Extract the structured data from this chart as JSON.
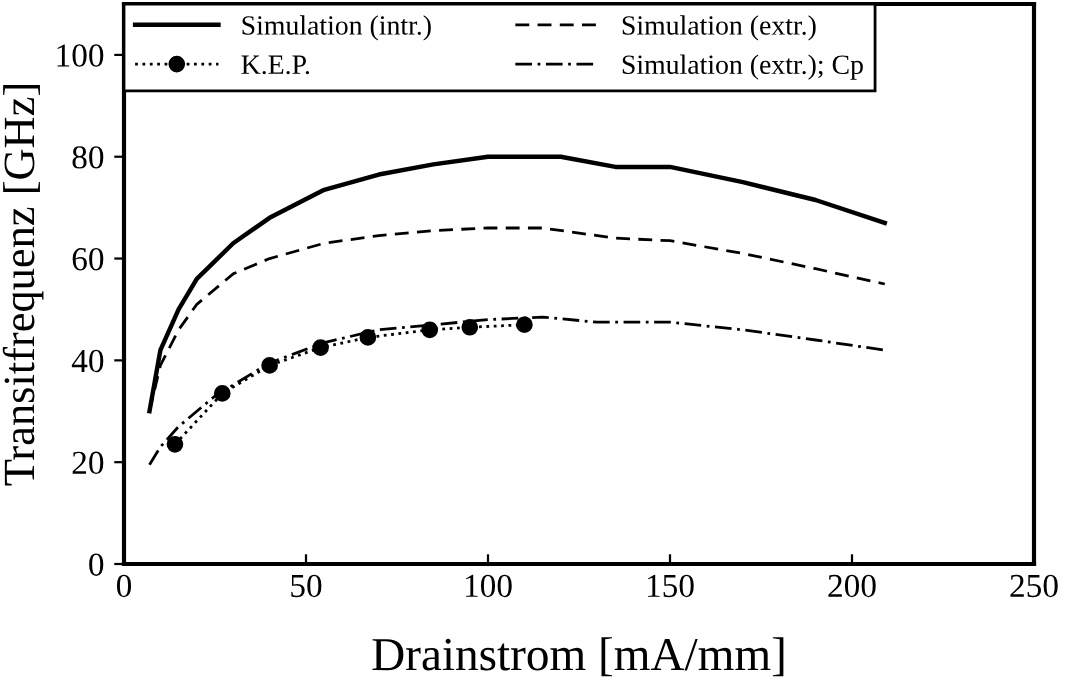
{
  "chart_data": {
    "type": "line",
    "xlabel": "Drainstrom [mA/mm]",
    "ylabel": "Transitfrequenz [GHz]",
    "xlim": [
      0,
      250
    ],
    "xticks": [
      0,
      50,
      100,
      150,
      200,
      250
    ],
    "ylim": [
      0,
      110
    ],
    "yticks": [
      0,
      20,
      40,
      60,
      80,
      100
    ],
    "grid": false,
    "legend": "top left",
    "series": [
      {
        "name": "Simulation (intr.)",
        "color": "#000000",
        "line_style": "solid",
        "marker": "none",
        "x": [
          7,
          10,
          15,
          20,
          30,
          40,
          55,
          70,
          85,
          100,
          120,
          135,
          150,
          170,
          190,
          209
        ],
        "values": [
          30,
          42,
          50,
          56,
          63,
          68,
          73.5,
          76.5,
          78.5,
          80,
          80,
          78,
          78,
          75,
          71.5,
          67
        ]
      },
      {
        "name": "Simulation (extr.)",
        "color": "#000000",
        "line_style": "dashed",
        "marker": "none",
        "x": [
          7,
          10,
          15,
          20,
          30,
          40,
          55,
          70,
          85,
          100,
          115,
          135,
          150,
          170,
          190,
          209
        ],
        "values": [
          30,
          39,
          46,
          51,
          57,
          60,
          63,
          64.5,
          65.5,
          66,
          66,
          64,
          63.5,
          61,
          58,
          55
        ]
      },
      {
        "name": "K.E.P.",
        "color": "#000000",
        "line_style": "dotted",
        "marker": "circle",
        "x": [
          14,
          27,
          40,
          54,
          67,
          84,
          95,
          110
        ],
        "values": [
          23.5,
          33.5,
          39,
          42.5,
          44.5,
          46,
          46.5,
          47
        ]
      },
      {
        "name": "Simulation (extr.); Cp",
        "color": "#000000",
        "line_style": "dashdot",
        "marker": "none",
        "x": [
          7,
          10,
          15,
          25,
          40,
          55,
          70,
          85,
          100,
          115,
          130,
          150,
          170,
          190,
          209
        ],
        "values": [
          19.5,
          23,
          27,
          33,
          39.5,
          43.5,
          46,
          47,
          48,
          48.5,
          47.5,
          47.5,
          46,
          44,
          42
        ]
      }
    ]
  }
}
